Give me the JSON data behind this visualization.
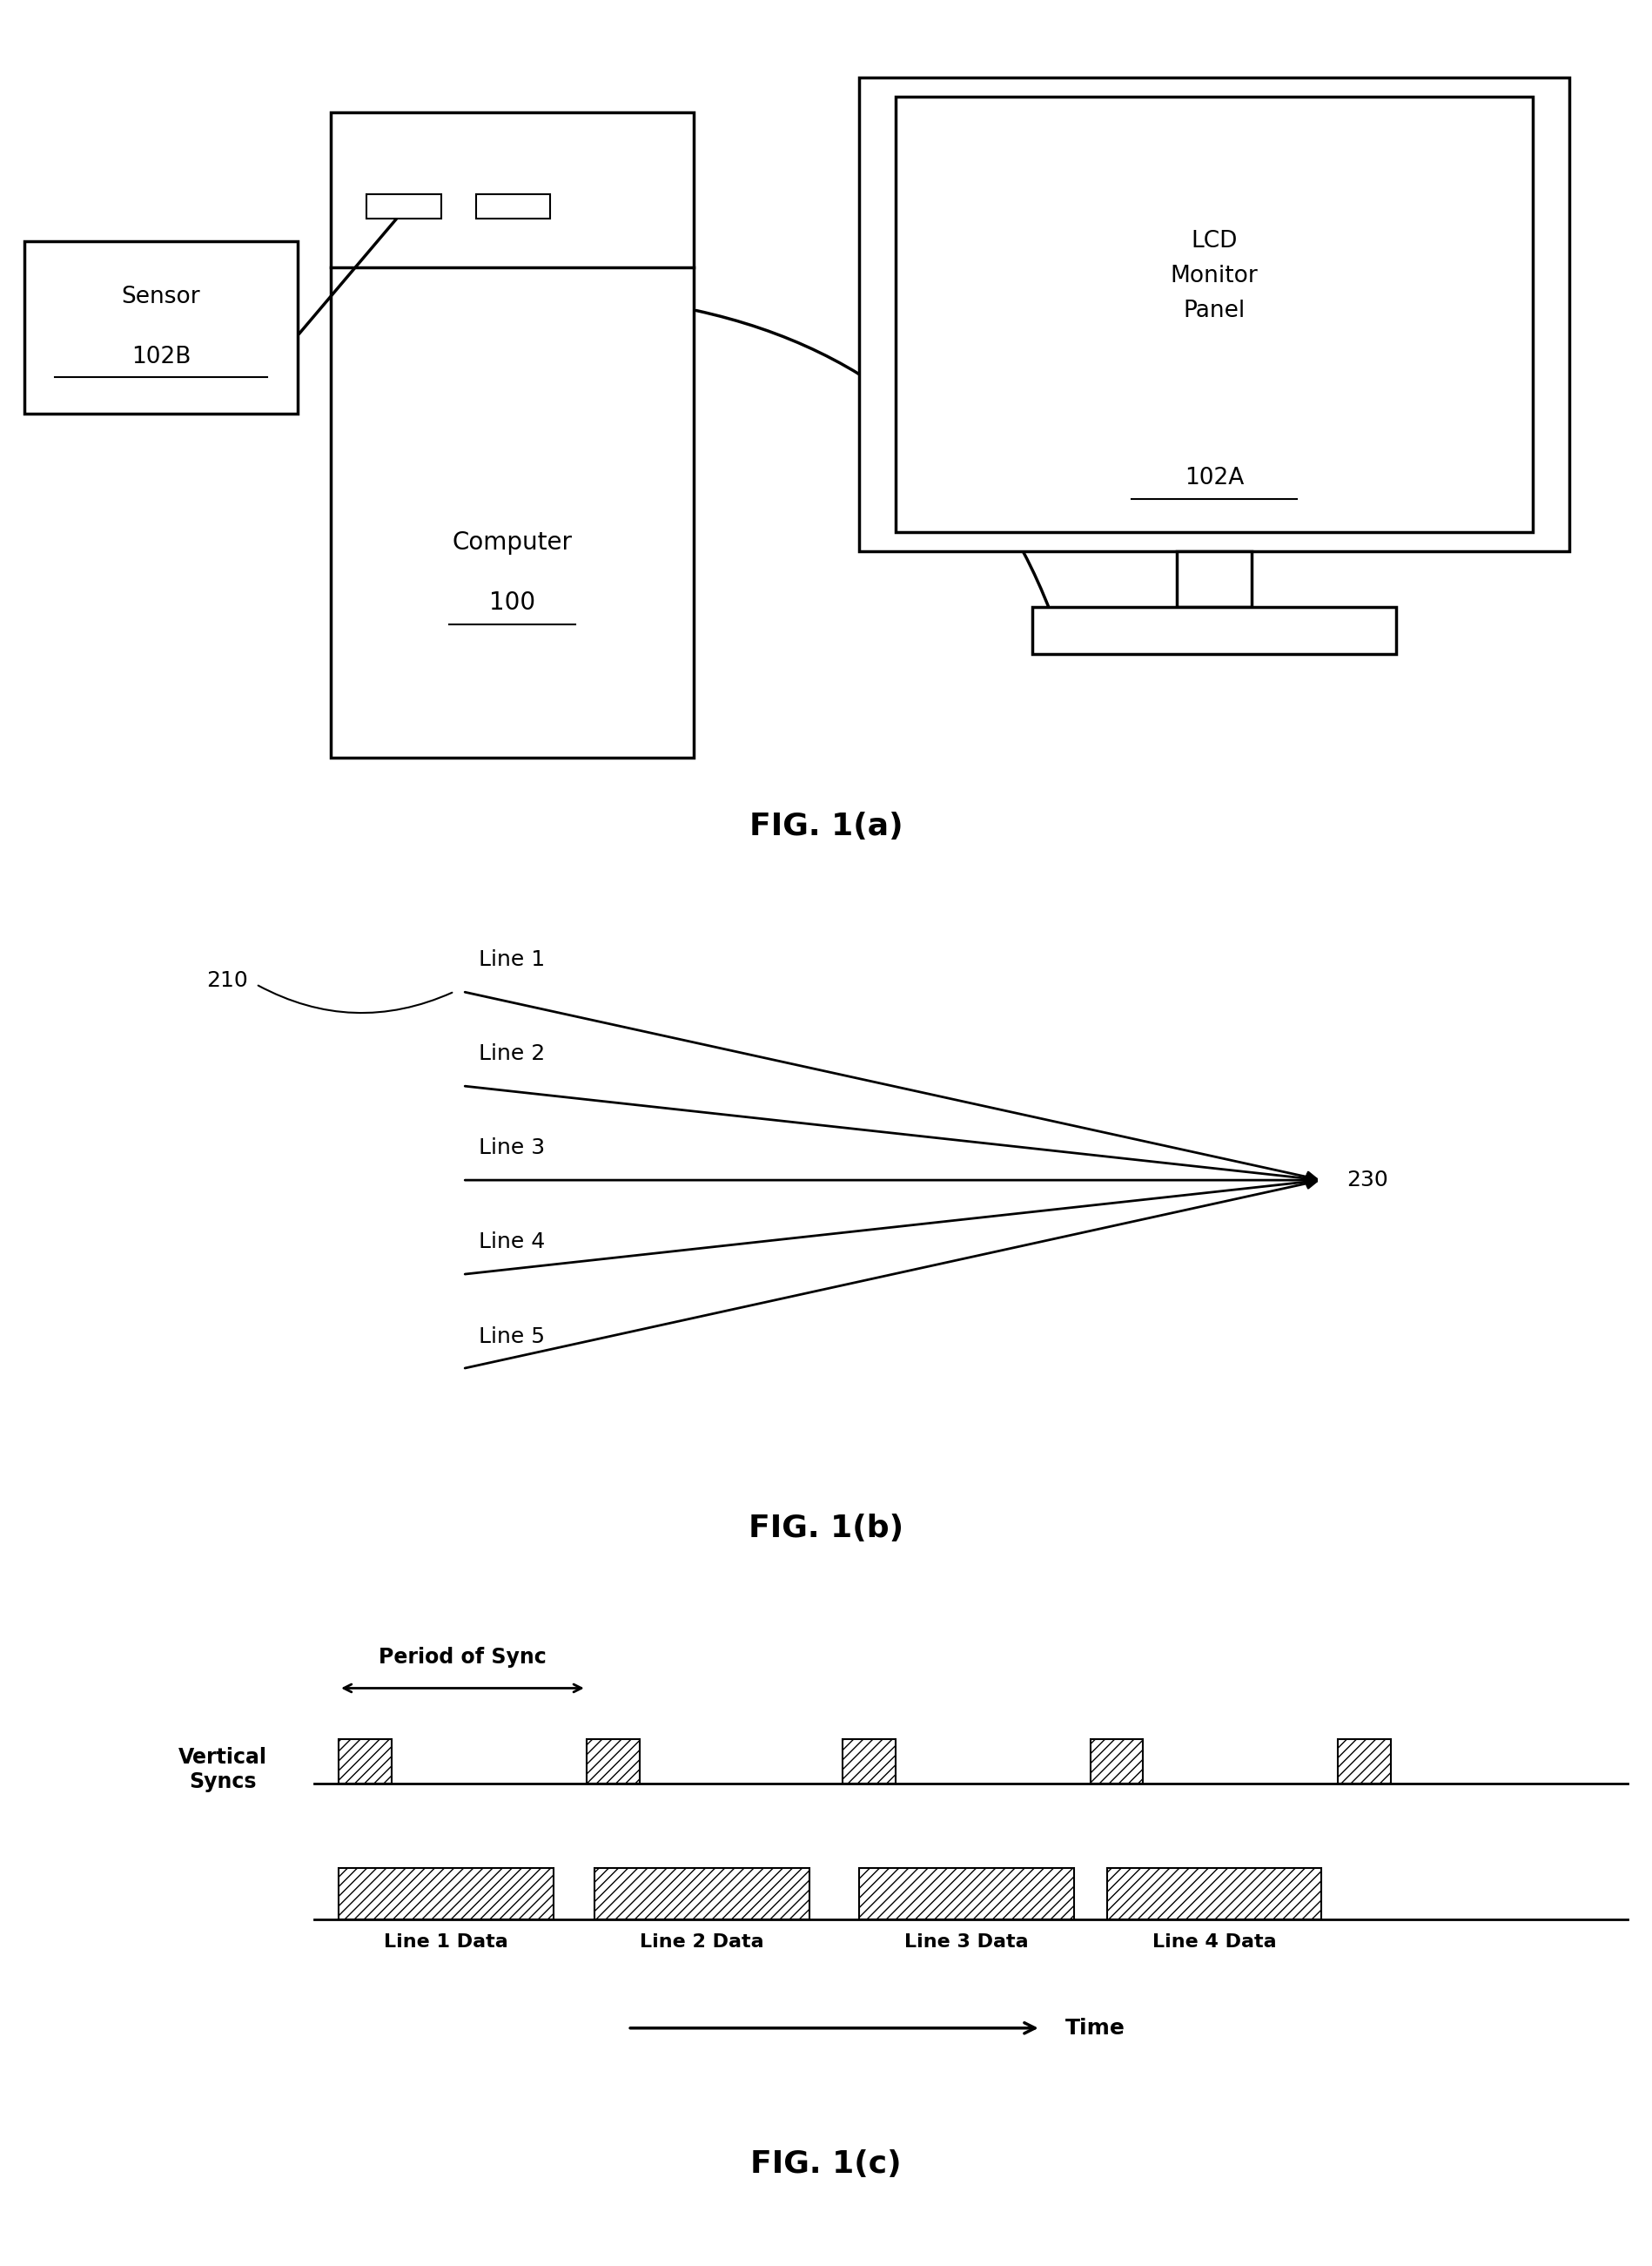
{
  "bg_color": "#ffffff",
  "fig_width": 18.98,
  "fig_height": 26.02,
  "fig1a_label": "FIG. 1(a)",
  "fig1b_label": "FIG. 1(b)",
  "fig1c_label": "FIG. 1(c)",
  "computer_label": "Computer",
  "computer_num": "100",
  "sensor_label": "Sensor",
  "sensor_num": "102B",
  "lcd_label": "LCD\nMonitor\nPanel",
  "lcd_num": "102A",
  "label_210": "210",
  "label_230": "230",
  "lines": [
    "Line 1",
    "Line 2",
    "Line 3",
    "Line 4",
    "Line 5"
  ],
  "sync_label": "Vertical\nSyncs",
  "period_label": "Period of Sync",
  "time_label": "Time",
  "data_labels": [
    "Line 1 Data",
    "Line 2 Data",
    "Line 3 Data",
    "Line 4 Data"
  ]
}
